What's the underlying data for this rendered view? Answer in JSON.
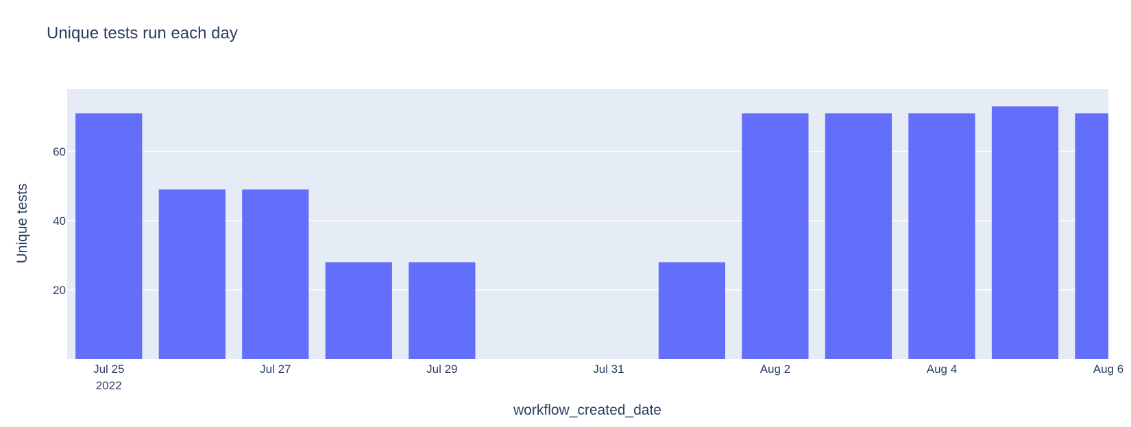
{
  "chart_data": {
    "type": "bar",
    "title": "Unique tests run each day",
    "xlabel": "workflow_created_date",
    "ylabel": "Unique tests",
    "x": [
      "2022-07-25",
      "2022-07-26",
      "2022-07-27",
      "2022-07-28",
      "2022-07-29",
      "2022-08-01",
      "2022-08-02",
      "2022-08-03",
      "2022-08-04",
      "2022-08-05",
      "2022-08-06"
    ],
    "values": [
      71,
      49,
      49,
      28,
      28,
      28,
      71,
      71,
      71,
      73,
      71
    ],
    "ylim": [
      0,
      78
    ],
    "yticks": [
      20,
      40,
      60
    ],
    "xticks": [
      {
        "date": "2022-07-25",
        "label": "Jul 25",
        "sublabel": "2022"
      },
      {
        "date": "2022-07-27",
        "label": "Jul 27"
      },
      {
        "date": "2022-07-29",
        "label": "Jul 29"
      },
      {
        "date": "2022-07-31",
        "label": "Jul 31"
      },
      {
        "date": "2022-08-02",
        "label": "Aug 2"
      },
      {
        "date": "2022-08-04",
        "label": "Aug 4"
      },
      {
        "date": "2022-08-06",
        "label": "Aug 6"
      }
    ],
    "grid": true,
    "colors": {
      "bar": "#636efa",
      "plot_bg": "#e5ecf6",
      "grid": "#ffffff",
      "text": "#2a3f5f"
    }
  }
}
